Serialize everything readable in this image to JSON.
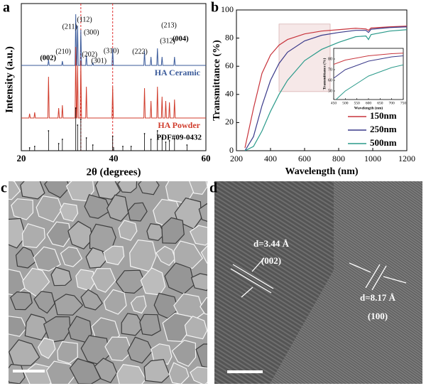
{
  "chart_data": [
    {
      "type": "line",
      "panel_label": "a",
      "xlabel": "2θ (degrees)",
      "ylabel": "Intensity (a.u.)",
      "xlim": [
        20,
        60
      ],
      "xticks": [
        20,
        40,
        60
      ],
      "ylim": [
        0,
        100
      ],
      "reference_lines": [
        32.9,
        39.8
      ],
      "reference_color": "#e03030",
      "series": [
        {
          "name": "HA Ceramic",
          "color": "#3a5a9a",
          "style": "line",
          "x": [
            20,
            25.75,
            25.9,
            26.05,
            28.75,
            28.9,
            29.05,
            31.65,
            31.8,
            31.95,
            32.05,
            32.2,
            32.35,
            32.75,
            32.9,
            33.05,
            33.95,
            34.1,
            34.25,
            35.35,
            35.5,
            35.65,
            39.65,
            39.8,
            39.95,
            46.55,
            46.7,
            46.85,
            47.95,
            48.1,
            48.25,
            49.35,
            49.5,
            49.65,
            50.35,
            50.5,
            50.65,
            53.05,
            53.2,
            53.35,
            60
          ],
          "values": [
            60,
            60,
            64,
            60,
            60,
            63,
            60,
            60,
            96,
            60,
            60,
            88,
            60,
            60,
            85,
            60,
            60,
            67,
            60,
            60,
            62,
            60,
            60,
            72,
            60,
            60,
            70,
            60,
            60,
            66,
            60,
            60,
            72,
            60,
            60,
            66,
            60,
            60,
            66,
            60,
            60
          ]
        },
        {
          "name": "HA Powder",
          "color": "#d03c2c",
          "style": "line",
          "x": [
            20,
            21.65,
            21.8,
            21.95,
            22.75,
            22.9,
            23.05,
            25.75,
            25.9,
            26.05,
            27.95,
            28.1,
            28.25,
            28.75,
            28.9,
            29.05,
            31.65,
            31.8,
            31.95,
            32.05,
            32.2,
            32.35,
            32.75,
            32.9,
            33.05,
            33.95,
            34.1,
            34.25,
            39.65,
            39.8,
            39.95,
            46.55,
            46.7,
            46.85,
            47.95,
            48.1,
            48.25,
            49.35,
            49.5,
            49.65,
            50.35,
            50.5,
            50.65,
            51.15,
            51.3,
            51.45,
            51.95,
            52.1,
            52.25,
            53.05,
            53.2,
            53.35,
            60
          ],
          "values": [
            23,
            23,
            26,
            23,
            23,
            27,
            23,
            23,
            52,
            23,
            23,
            30,
            23,
            23,
            32,
            23,
            23,
            73,
            23,
            23,
            60,
            23,
            23,
            63,
            23,
            23,
            45,
            23,
            23,
            45,
            23,
            23,
            44,
            23,
            23,
            35,
            23,
            23,
            45,
            23,
            23,
            38,
            23,
            23,
            35,
            23,
            23,
            34,
            23,
            23,
            36,
            23,
            23
          ]
        },
        {
          "name": "PDF#09-0432",
          "color": "#000000",
          "style": "stick",
          "x": [
            21.8,
            22.9,
            25.9,
            28.1,
            28.9,
            31.8,
            32.2,
            32.9,
            34.1,
            35.5,
            39.8,
            42.0,
            43.8,
            46.7,
            48.1,
            49.5,
            50.5,
            51.3,
            52.1,
            53.2,
            55.9
          ],
          "values": [
            2,
            3,
            14,
            5,
            8,
            30,
            18,
            22,
            9,
            4,
            10,
            3,
            3,
            12,
            8,
            14,
            9,
            6,
            7,
            8,
            4
          ]
        }
      ],
      "annotations": [
        {
          "text": "(002)",
          "x": 25.8,
          "y": 65,
          "bold": true
        },
        {
          "text": "(210)",
          "x": 29.1,
          "y": 69.5
        },
        {
          "text": "(211)",
          "x": 30.5,
          "y": 87
        },
        {
          "text": "(112)",
          "x": 33.7,
          "y": 92
        },
        {
          "text": "(300)",
          "x": 35.2,
          "y": 83
        },
        {
          "text": "(202)",
          "x": 34.8,
          "y": 67.5
        },
        {
          "text": "(301)",
          "x": 36.8,
          "y": 63
        },
        {
          "text": "(310)",
          "x": 39.5,
          "y": 70
        },
        {
          "text": "(222)",
          "x": 45.7,
          "y": 69.5
        },
        {
          "text": "(312)",
          "x": 51.7,
          "y": 77
        },
        {
          "text": "(213)",
          "x": 52.0,
          "y": 88
        },
        {
          "text": "(004)",
          "x": 54.5,
          "y": 78.5,
          "bold": true
        }
      ]
    },
    {
      "type": "line",
      "panel_label": "b",
      "xlabel": "Wavelength (nm)",
      "ylabel": "Transmittance (%)",
      "xlim": [
        200,
        1200
      ],
      "xticks": [
        200,
        400,
        600,
        800,
        1000,
        1200
      ],
      "ylim": [
        0,
        100
      ],
      "yticks": [
        0,
        20,
        40,
        60,
        80,
        100
      ],
      "legend": "lower right",
      "x": [
        250,
        300,
        350,
        400,
        450,
        500,
        600,
        700,
        800,
        900,
        960,
        975,
        990,
        1100,
        1200
      ],
      "series": [
        {
          "name": "150nm",
          "color": "#c8343c",
          "values": [
            2,
            30,
            55,
            68,
            75,
            79,
            83,
            85,
            86,
            87,
            86.5,
            85.5,
            87.2,
            88,
            88.5
          ]
        },
        {
          "name": "250nm",
          "color": "#3a3a8a",
          "values": [
            0,
            10,
            32,
            50,
            62,
            70,
            78,
            82,
            84,
            85.5,
            85.5,
            84,
            86.3,
            87.5,
            88
          ]
        },
        {
          "name": "500nm",
          "color": "#2a9a8a",
          "values": [
            0,
            3,
            14,
            28,
            40,
            50,
            64,
            72,
            77,
            81,
            81.5,
            79,
            82.5,
            85,
            86
          ]
        }
      ],
      "inset": {
        "xlabel": "Wavelength (nm)",
        "ylabel": "Transmittance (%)",
        "xlim": [
          450,
          750
        ],
        "xticks": [
          450,
          500,
          550,
          600,
          650,
          700,
          750
        ],
        "ylim": [
          42,
          90
        ],
        "yticks": [
          50,
          60,
          70,
          80
        ]
      }
    }
  ],
  "images": [
    {
      "panel_label": "c"
    },
    {
      "panel_label": "d",
      "annotations": [
        "d=3.44 Å",
        "(002)",
        "d=8.17 Å",
        "(100)"
      ]
    }
  ]
}
